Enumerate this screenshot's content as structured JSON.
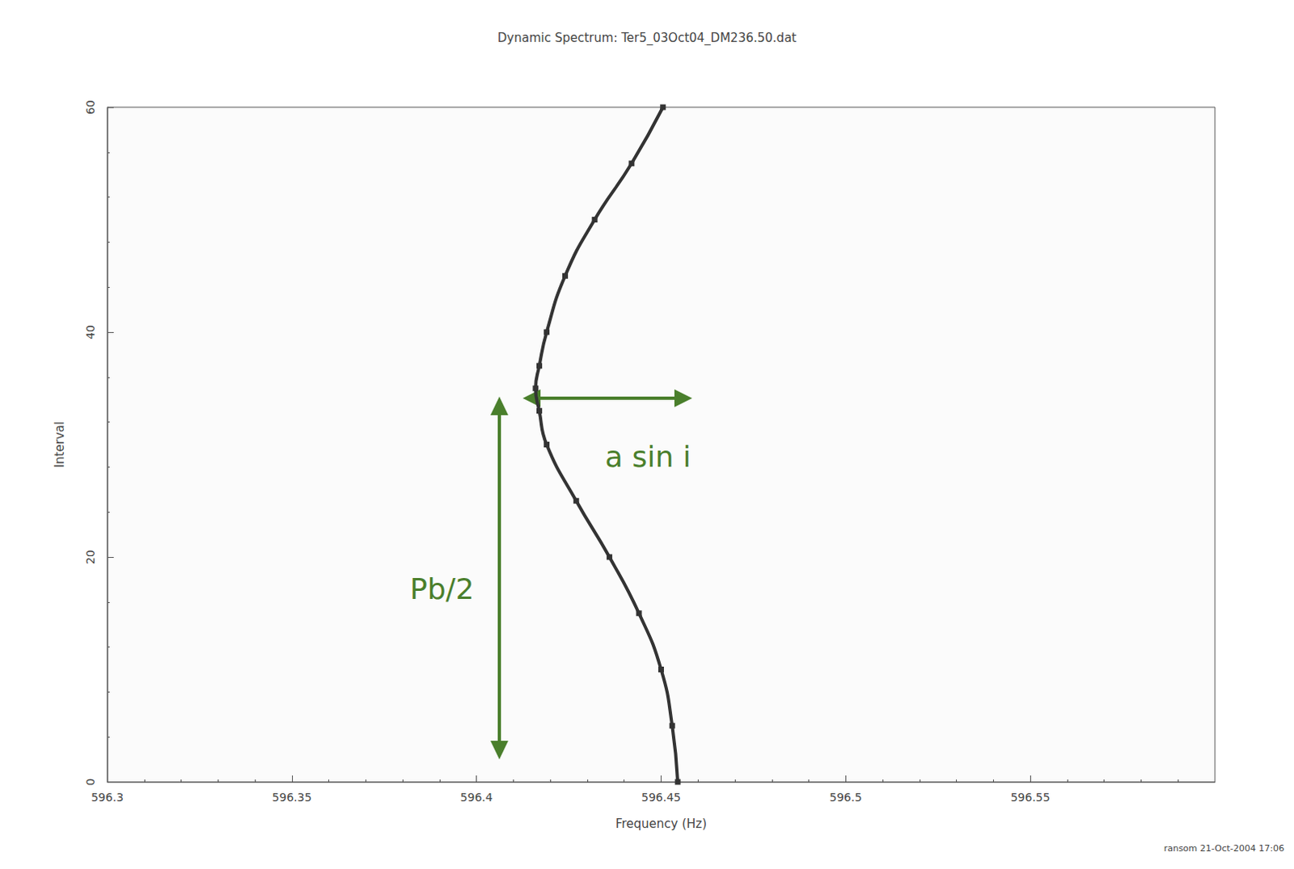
{
  "chart_data": {
    "type": "line",
    "title": "Dynamic Spectrum: Ter5_03Oct04_DM236.50.dat",
    "x_label": "Frequency (Hz)",
    "y_label": "Interval",
    "x": [
      596.4545,
      596.453,
      596.45,
      596.444,
      596.436,
      596.427,
      596.419,
      596.417,
      596.416,
      596.417,
      596.419,
      596.424,
      596.432,
      596.442,
      596.4505
    ],
    "values": [
      0,
      5,
      10,
      15,
      20,
      25,
      30,
      33,
      35,
      37,
      40,
      45,
      50,
      55,
      60
    ],
    "color": "#333333",
    "marker": "square",
    "line_style": "solid",
    "xlim": [
      596.3,
      596.6
    ],
    "ylim": [
      0,
      60
    ],
    "xticks": [
      596.3,
      596.35,
      596.4,
      596.45,
      596.5,
      596.55
    ],
    "yticks": [
      0,
      20,
      40,
      60
    ],
    "grid": false,
    "annotations": [
      "Pb/2",
      "a sin i"
    ],
    "footer": "ransom 21-Oct-2004 17:06"
  }
}
